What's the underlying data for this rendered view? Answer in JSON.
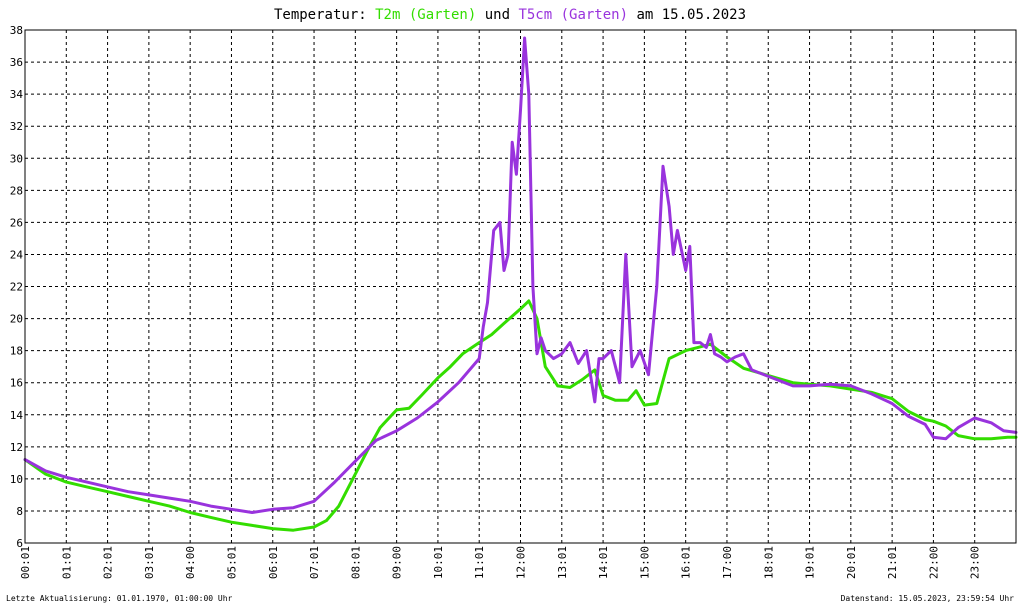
{
  "chart_data": {
    "type": "line",
    "title_parts": {
      "prefix": "Temperatur: ",
      "series1": "T2m (Garten)",
      "connector": " und ",
      "series2": "T5cm (Garten)",
      "suffix": " am 15.05.2023"
    },
    "xlabel": "",
    "ylabel": "",
    "ylim": [
      6,
      38
    ],
    "xlim_hours": [
      0,
      24
    ],
    "y_ticks": [
      "6",
      "8",
      "10",
      "12",
      "14",
      "16",
      "18",
      "20",
      "22",
      "24",
      "26",
      "28",
      "30",
      "32",
      "34",
      "36",
      "38"
    ],
    "x_ticks": [
      "00:01",
      "01:01",
      "02:01",
      "03:01",
      "04:00",
      "05:01",
      "06:01",
      "07:01",
      "08:01",
      "09:00",
      "10:01",
      "11:01",
      "12:00",
      "13:01",
      "14:01",
      "15:00",
      "16:01",
      "17:00",
      "18:01",
      "19:01",
      "20:01",
      "21:01",
      "22:00",
      "23:00"
    ],
    "grid": true,
    "series": [
      {
        "name": "T2m (Garten)",
        "color": "#33dd00",
        "x_hours": [
          0,
          0.5,
          1,
          1.5,
          2,
          2.5,
          3,
          3.5,
          4,
          4.5,
          5,
          5.5,
          6,
          6.5,
          7,
          7.3,
          7.6,
          8,
          8.3,
          8.6,
          9,
          9.3,
          9.6,
          10,
          10.3,
          10.6,
          11,
          11.3,
          11.6,
          12,
          12.2,
          12.4,
          12.6,
          12.9,
          13.2,
          13.5,
          13.8,
          14,
          14.3,
          14.6,
          14.8,
          15,
          15.3,
          15.6,
          16,
          16.3,
          16.6,
          17,
          17.4,
          17.8,
          18.2,
          18.6,
          19,
          19.5,
          20,
          20.5,
          21,
          21.4,
          21.8,
          22,
          22.3,
          22.6,
          23,
          23.4,
          23.8,
          24
        ],
        "values": [
          11.2,
          10.3,
          9.8,
          9.5,
          9.2,
          8.9,
          8.6,
          8.3,
          7.9,
          7.6,
          7.3,
          7.1,
          6.9,
          6.8,
          7.0,
          7.4,
          8.3,
          10.3,
          11.8,
          13.2,
          14.3,
          14.4,
          15.2,
          16.3,
          17.0,
          17.8,
          18.5,
          19.0,
          19.7,
          20.6,
          21.1,
          20.0,
          17.0,
          15.8,
          15.7,
          16.2,
          16.8,
          15.2,
          14.9,
          14.9,
          15.5,
          14.6,
          14.7,
          17.5,
          18.0,
          18.2,
          18.4,
          17.6,
          16.9,
          16.6,
          16.3,
          16.0,
          15.9,
          15.8,
          15.6,
          15.4,
          15.0,
          14.2,
          13.7,
          13.6,
          13.3,
          12.7,
          12.5,
          12.5,
          12.6,
          12.6
        ]
      },
      {
        "name": "T5cm (Garten)",
        "color": "#9933dd",
        "x_hours": [
          0,
          0.5,
          1,
          1.5,
          2,
          2.5,
          3,
          3.5,
          4,
          4.5,
          5,
          5.5,
          6,
          6.5,
          7,
          7.5,
          8,
          8.5,
          9,
          9.5,
          10,
          10.5,
          11,
          11.1,
          11.2,
          11.35,
          11.5,
          11.6,
          11.7,
          11.8,
          11.9,
          12.0,
          12.1,
          12.2,
          12.3,
          12.4,
          12.5,
          12.6,
          12.8,
          13.0,
          13.2,
          13.4,
          13.6,
          13.8,
          13.9,
          14.0,
          14.2,
          14.4,
          14.55,
          14.7,
          14.9,
          15.1,
          15.3,
          15.45,
          15.6,
          15.7,
          15.8,
          16.0,
          16.1,
          16.2,
          16.35,
          16.5,
          16.6,
          16.7,
          16.85,
          17.0,
          17.2,
          17.4,
          17.6,
          17.8,
          18.2,
          18.6,
          19.0,
          19.5,
          20.0,
          20.5,
          21.0,
          21.4,
          21.8,
          22.0,
          22.3,
          22.6,
          23.0,
          23.4,
          23.7,
          24
        ],
        "values": [
          11.2,
          10.5,
          10.1,
          9.8,
          9.5,
          9.2,
          9.0,
          8.8,
          8.6,
          8.3,
          8.1,
          7.9,
          8.1,
          8.2,
          8.6,
          9.8,
          11.1,
          12.4,
          13.0,
          13.8,
          14.8,
          16.0,
          17.5,
          19.5,
          21.0,
          25.5,
          26.0,
          23.0,
          24.0,
          31.0,
          29.0,
          33.0,
          37.5,
          34.0,
          22.0,
          17.8,
          18.8,
          18.0,
          17.5,
          17.8,
          18.5,
          17.2,
          18.0,
          14.8,
          17.5,
          17.5,
          18.0,
          16.0,
          24.0,
          17.0,
          18.0,
          16.5,
          22.0,
          29.5,
          27.0,
          24.0,
          25.5,
          23.0,
          24.5,
          18.5,
          18.5,
          18.2,
          19.0,
          17.8,
          17.6,
          17.3,
          17.6,
          17.8,
          16.8,
          16.6,
          16.2,
          15.8,
          15.8,
          15.9,
          15.8,
          15.3,
          14.7,
          13.9,
          13.4,
          12.6,
          12.5,
          13.2,
          13.8,
          13.5,
          13.0,
          12.9
        ]
      }
    ]
  },
  "footer": {
    "left": "Letzte Aktualisierung: 01.01.1970, 01:00:00 Uhr",
    "right": "Datenstand: 15.05.2023, 23:59:54 Uhr"
  }
}
